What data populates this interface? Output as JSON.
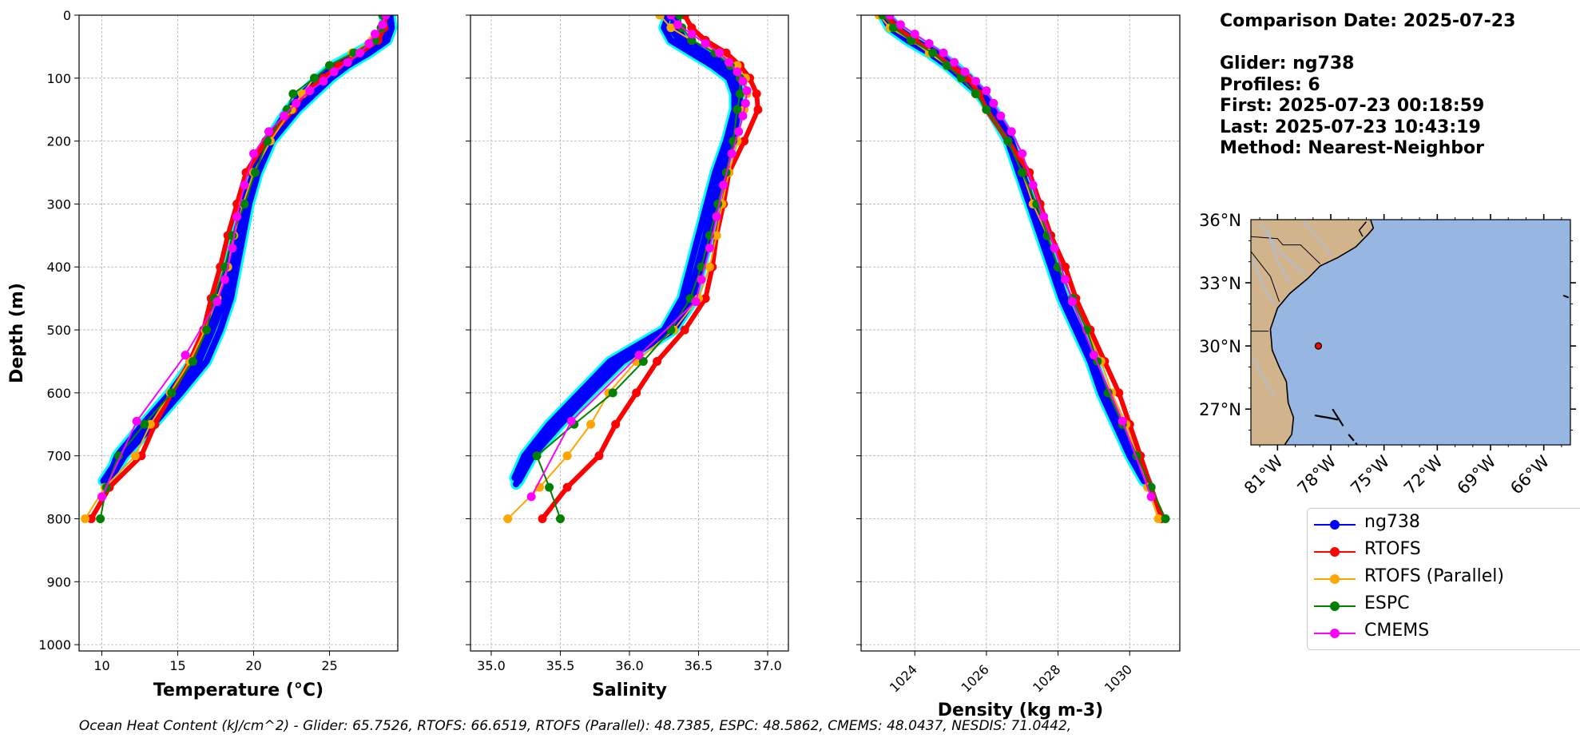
{
  "info": {
    "title": "Comparison Date: 2025-07-23",
    "glider": "Glider: ng738",
    "profiles": "Profiles: 6",
    "first": "First: 2025-07-23 00:18:59",
    "last": "Last: 2025-07-23 10:43:19",
    "method": "Method: Nearest-Neighbor"
  },
  "footer": "Ocean Heat Content (kJ/cm^2) - Glider: 65.7526,  RTOFS: 66.6519,  RTOFS (Parallel): 48.7385,  ESPC: 48.5862,  CMEMS: 48.0437,  NESDIS: 71.0442,",
  "legend": [
    {
      "name": "ng738",
      "color": "#0000ff"
    },
    {
      "name": "RTOFS",
      "color": "#ff0000"
    },
    {
      "name": "RTOFS (Parallel)",
      "color": "#ffa500"
    },
    {
      "name": "ESPC",
      "color": "#008000"
    },
    {
      "name": "CMEMS",
      "color": "#ff00ff"
    }
  ],
  "colors": {
    "glider": "#0000ff",
    "glider_fill": "#00ffff",
    "rtofs": "#ff0000",
    "rtofs_parallel": "#ffa500",
    "espc": "#008000",
    "cmems": "#ff00ff",
    "land": "#d2b48c",
    "ocean": "#97b6e1"
  },
  "chart_data": [
    {
      "type": "line",
      "xlabel": "Temperature (°C)",
      "ylabel": "Depth (m)",
      "xlim": [
        8.5,
        29.5
      ],
      "ylim": [
        1010,
        0
      ],
      "y_inverted": true,
      "grid": true,
      "xticks": [
        10,
        15,
        20,
        25
      ],
      "yticks": [
        0,
        100,
        200,
        300,
        400,
        500,
        600,
        700,
        800,
        900,
        1000
      ],
      "depth": [
        0,
        20,
        40,
        60,
        80,
        100,
        125,
        150,
        200,
        250,
        300,
        350,
        400,
        450,
        500,
        550,
        600,
        650,
        700,
        750,
        800
      ],
      "glider_profiles": [
        {
          "depth": [
            0,
            20,
            40,
            60,
            80,
            100,
            125,
            150,
            200,
            250,
            300,
            350,
            400,
            450,
            500,
            550,
            600,
            650,
            700,
            740
          ],
          "values": [
            28.9,
            28.9,
            28.6,
            27.3,
            25.8,
            24.8,
            23.7,
            22.6,
            21.0,
            20.1,
            19.5,
            19.0,
            18.6,
            18.1,
            17.3,
            16.4,
            14.8,
            13.0,
            11.2,
            10.1
          ]
        },
        {
          "depth": [
            0,
            20,
            40,
            60,
            80,
            100,
            125,
            150,
            200,
            250,
            300,
            350,
            400,
            450,
            500,
            550,
            600,
            650,
            700,
            745
          ],
          "values": [
            28.6,
            28.7,
            28.3,
            26.8,
            25.3,
            24.3,
            23.2,
            22.3,
            20.9,
            20.0,
            19.3,
            18.8,
            18.3,
            17.7,
            17.0,
            16.0,
            14.5,
            12.7,
            11.0,
            10.3
          ]
        },
        {
          "depth": [
            0,
            20,
            40,
            60,
            80,
            100,
            125,
            150,
            200,
            250,
            300,
            350,
            400,
            450,
            500,
            550,
            600,
            650,
            700,
            735
          ],
          "values": [
            29.0,
            29.1,
            28.8,
            27.6,
            26.2,
            25.1,
            24.0,
            22.9,
            21.2,
            20.3,
            19.7,
            19.3,
            18.9,
            18.5,
            17.8,
            16.9,
            15.2,
            13.4,
            11.5,
            10.6
          ]
        }
      ],
      "series": [
        {
          "name": "RTOFS",
          "depth": [
            0,
            20,
            40,
            60,
            80,
            100,
            125,
            150,
            200,
            250,
            300,
            350,
            400,
            450,
            500,
            550,
            600,
            650,
            700,
            750,
            800
          ],
          "values": [
            28.7,
            28.6,
            28.2,
            27.0,
            25.6,
            24.6,
            23.3,
            22.6,
            20.8,
            19.5,
            18.9,
            18.3,
            17.8,
            17.2,
            16.7,
            15.8,
            14.6,
            13.5,
            12.6,
            10.5,
            9.3
          ]
        },
        {
          "name": "RTOFS (Parallel)",
          "depth": [
            0,
            20,
            40,
            60,
            80,
            100,
            125,
            150,
            200,
            250,
            300,
            350,
            400,
            450,
            500,
            550,
            600,
            650,
            700,
            750,
            800
          ],
          "values": [
            28.6,
            28.4,
            27.8,
            26.5,
            25.0,
            24.0,
            23.2,
            22.5,
            21.1,
            20.0,
            19.3,
            18.7,
            18.3,
            17.6,
            16.8,
            15.8,
            14.5,
            13.2,
            12.2,
            10.2,
            8.9
          ]
        },
        {
          "name": "ESPC",
          "depth": [
            0,
            20,
            40,
            60,
            80,
            100,
            125,
            150,
            200,
            250,
            300,
            350,
            400,
            450,
            500,
            550,
            600,
            650,
            700,
            750,
            800
          ],
          "values": [
            28.5,
            28.4,
            28.0,
            26.6,
            25.0,
            24.0,
            22.6,
            22.2,
            20.9,
            20.1,
            19.4,
            18.6,
            18.1,
            17.4,
            16.9,
            16.0,
            14.6,
            12.8,
            11.1,
            10.3,
            9.9
          ]
        },
        {
          "name": "CMEMS",
          "depth": [
            0,
            15,
            30,
            45,
            60,
            75,
            90,
            105,
            120,
            140,
            160,
            185,
            220,
            270,
            320,
            370,
            420,
            455,
            540,
            645,
            765
          ],
          "values": [
            28.7,
            28.5,
            28.0,
            27.6,
            27.0,
            26.2,
            25.3,
            24.6,
            23.7,
            22.8,
            22.0,
            21.0,
            20.0,
            19.4,
            18.9,
            18.6,
            18.1,
            17.6,
            15.5,
            12.3,
            10.0
          ]
        }
      ]
    },
    {
      "type": "line",
      "xlabel": "Salinity",
      "ylabel": "",
      "xlim": [
        34.85,
        37.15
      ],
      "ylim": [
        1010,
        0
      ],
      "y_inverted": true,
      "grid": true,
      "xticks": [
        35.0,
        35.5,
        36.0,
        36.5,
        37.0
      ],
      "glider_profiles": [
        {
          "depth": [
            0,
            20,
            40,
            60,
            80,
            100,
            125,
            150,
            200,
            250,
            300,
            350,
            400,
            450,
            500,
            550,
            600,
            650,
            700,
            740
          ],
          "values": [
            36.3,
            36.35,
            36.4,
            36.55,
            36.7,
            36.78,
            36.8,
            36.79,
            36.75,
            36.68,
            36.63,
            36.58,
            36.52,
            36.47,
            36.32,
            35.95,
            35.72,
            35.5,
            35.3,
            35.2
          ]
        },
        {
          "depth": [
            0,
            20,
            40,
            60,
            80,
            100,
            125,
            150,
            200,
            250,
            300,
            350,
            400,
            450,
            500,
            550,
            600,
            650,
            700,
            745
          ],
          "values": [
            36.35,
            36.3,
            36.36,
            36.5,
            36.65,
            36.75,
            36.78,
            36.77,
            36.72,
            36.65,
            36.6,
            36.55,
            36.49,
            36.42,
            36.28,
            35.9,
            35.68,
            35.46,
            35.27,
            35.18
          ]
        },
        {
          "depth": [
            0,
            20,
            40,
            60,
            80,
            100,
            125,
            150,
            200,
            250,
            300,
            350,
            400,
            450,
            500,
            550,
            600,
            650,
            700,
            735
          ],
          "values": [
            36.28,
            36.25,
            36.3,
            36.45,
            36.6,
            36.72,
            36.76,
            36.76,
            36.7,
            36.62,
            36.56,
            36.5,
            36.44,
            36.38,
            36.25,
            35.86,
            35.64,
            35.42,
            35.24,
            35.17
          ]
        }
      ],
      "series": [
        {
          "name": "RTOFS",
          "depth": [
            0,
            20,
            40,
            60,
            80,
            100,
            125,
            150,
            200,
            250,
            300,
            350,
            400,
            450,
            500,
            550,
            600,
            650,
            700,
            750,
            800
          ],
          "values": [
            36.4,
            36.45,
            36.55,
            36.7,
            36.8,
            36.87,
            36.92,
            36.93,
            36.83,
            36.72,
            36.68,
            36.63,
            36.6,
            36.55,
            36.4,
            36.2,
            36.05,
            35.9,
            35.78,
            35.55,
            35.37
          ]
        },
        {
          "name": "RTOFS (Parallel)",
          "depth": [
            0,
            20,
            40,
            60,
            80,
            100,
            125,
            150,
            200,
            250,
            300,
            350,
            400,
            450,
            500,
            550,
            600,
            650,
            700,
            750,
            800
          ],
          "values": [
            36.22,
            36.3,
            36.45,
            36.65,
            36.78,
            36.84,
            36.85,
            36.83,
            36.78,
            36.72,
            36.67,
            36.63,
            36.58,
            36.5,
            36.32,
            36.05,
            35.85,
            35.72,
            35.55,
            35.35,
            35.12
          ]
        },
        {
          "name": "ESPC",
          "depth": [
            0,
            20,
            40,
            60,
            80,
            100,
            125,
            150,
            200,
            250,
            300,
            350,
            400,
            450,
            500,
            550,
            600,
            650,
            700,
            750,
            800
          ],
          "values": [
            36.36,
            36.38,
            36.45,
            36.62,
            36.73,
            36.8,
            36.8,
            36.78,
            36.75,
            36.7,
            36.64,
            36.58,
            36.52,
            36.44,
            36.3,
            36.1,
            35.88,
            35.6,
            35.33,
            35.42,
            35.5
          ]
        },
        {
          "name": "CMEMS",
          "depth": [
            0,
            15,
            30,
            45,
            60,
            75,
            90,
            105,
            120,
            140,
            160,
            185,
            220,
            270,
            320,
            370,
            420,
            455,
            540,
            645,
            765
          ],
          "values": [
            36.3,
            36.35,
            36.45,
            36.55,
            36.65,
            36.72,
            36.78,
            36.82,
            36.85,
            36.84,
            36.82,
            36.79,
            36.74,
            36.68,
            36.63,
            36.58,
            36.52,
            36.48,
            36.07,
            35.58,
            35.29
          ]
        }
      ]
    },
    {
      "type": "line",
      "xlabel": "Density (kg m-3)",
      "ylabel": "",
      "xlim": [
        1022.5,
        1031.4
      ],
      "ylim": [
        1010,
        0
      ],
      "y_inverted": true,
      "grid": true,
      "xticks": [
        1024,
        1026,
        1028,
        1030
      ],
      "glider_profiles": [
        {
          "depth": [
            0,
            20,
            40,
            60,
            80,
            100,
            125,
            150,
            200,
            250,
            300,
            350,
            400,
            450,
            500,
            550,
            600,
            650,
            700,
            745
          ],
          "values": [
            1023.2,
            1023.5,
            1024.0,
            1024.6,
            1025.1,
            1025.5,
            1025.9,
            1026.2,
            1026.7,
            1027.0,
            1027.3,
            1027.6,
            1027.9,
            1028.2,
            1028.6,
            1029.0,
            1029.3,
            1029.7,
            1030.1,
            1030.5
          ]
        },
        {
          "depth": [
            0,
            20,
            40,
            60,
            80,
            100,
            125,
            150,
            200,
            250,
            300,
            350,
            400,
            450,
            500,
            550,
            600,
            650,
            700,
            740
          ],
          "values": [
            1023.1,
            1023.3,
            1023.8,
            1024.4,
            1024.9,
            1025.3,
            1025.8,
            1026.1,
            1026.6,
            1026.9,
            1027.2,
            1027.5,
            1027.8,
            1028.1,
            1028.5,
            1028.9,
            1029.2,
            1029.6,
            1030.0,
            1030.4
          ]
        }
      ],
      "series": [
        {
          "name": "RTOFS",
          "depth": [
            0,
            20,
            40,
            60,
            80,
            100,
            125,
            150,
            200,
            250,
            300,
            350,
            400,
            450,
            500,
            550,
            600,
            650,
            700,
            750,
            800
          ],
          "values": [
            1023.2,
            1023.5,
            1024.0,
            1024.5,
            1025.0,
            1025.5,
            1025.8,
            1026.0,
            1026.6,
            1027.2,
            1027.5,
            1027.8,
            1028.2,
            1028.5,
            1028.9,
            1029.3,
            1029.7,
            1030.0,
            1030.3,
            1030.6,
            1030.9
          ]
        },
        {
          "name": "RTOFS (Parallel)",
          "depth": [
            0,
            20,
            40,
            60,
            80,
            100,
            125,
            150,
            200,
            250,
            300,
            350,
            400,
            450,
            500,
            550,
            600,
            650,
            700,
            750,
            800
          ],
          "values": [
            1023.0,
            1023.3,
            1023.9,
            1024.4,
            1024.9,
            1025.3,
            1025.7,
            1026.0,
            1026.6,
            1027.0,
            1027.3,
            1027.7,
            1028.0,
            1028.4,
            1028.8,
            1029.2,
            1029.5,
            1029.9,
            1030.2,
            1030.5,
            1030.8
          ]
        },
        {
          "name": "ESPC",
          "depth": [
            0,
            20,
            40,
            60,
            80,
            100,
            125,
            150,
            200,
            250,
            300,
            350,
            400,
            450,
            500,
            550,
            600,
            650,
            700,
            750,
            800
          ],
          "values": [
            1023.1,
            1023.4,
            1023.9,
            1024.5,
            1024.9,
            1025.3,
            1025.7,
            1026.0,
            1026.6,
            1027.0,
            1027.4,
            1027.7,
            1028.0,
            1028.4,
            1028.8,
            1029.1,
            1029.4,
            1029.8,
            1030.2,
            1030.6,
            1031.0
          ]
        },
        {
          "name": "CMEMS",
          "depth": [
            0,
            15,
            30,
            45,
            60,
            75,
            90,
            105,
            120,
            140,
            160,
            185,
            220,
            270,
            320,
            370,
            420,
            455,
            540,
            645,
            765
          ],
          "values": [
            1023.3,
            1023.6,
            1024.0,
            1024.4,
            1024.8,
            1025.1,
            1025.4,
            1025.7,
            1026.0,
            1026.2,
            1026.4,
            1026.7,
            1027.0,
            1027.3,
            1027.6,
            1027.9,
            1028.2,
            1028.4,
            1029.0,
            1029.8,
            1030.6
          ]
        }
      ]
    },
    {
      "type": "map",
      "lon_range": [
        -82.5,
        -64.5
      ],
      "lat_range": [
        25.3,
        36.0
      ],
      "lon_ticks": [
        "81°W",
        "78°W",
        "75°W",
        "72°W",
        "69°W",
        "66°W"
      ],
      "lat_ticks": [
        "36°N",
        "33°N",
        "30°N",
        "27°N"
      ],
      "marker": {
        "lon": -78.7,
        "lat": 30.0
      }
    }
  ]
}
